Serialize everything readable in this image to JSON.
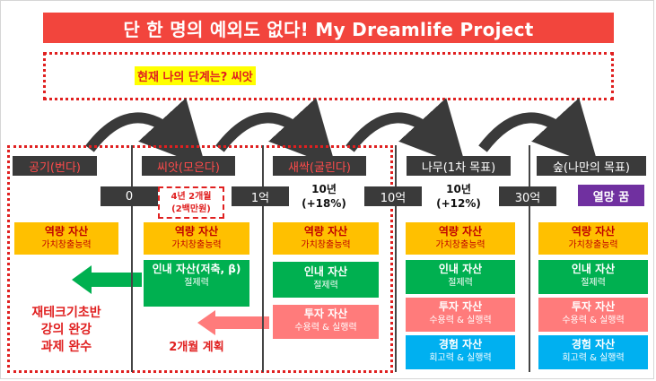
{
  "title": "단 한 명의 예외도 없다! My Dreamlife Project",
  "current_stage": "현재 나의 단계는? 씨앗",
  "phases": [
    {
      "label": "공기(번다)"
    },
    {
      "label": "씨앗(모은다)"
    },
    {
      "label": "새싹(굴린다)"
    },
    {
      "label": "나무(1차 목표)"
    },
    {
      "label": "숲(나만의 목표)"
    }
  ],
  "amounts": [
    "0",
    "1억",
    "10억",
    "30억",
    "열망 꿈"
  ],
  "durations": {
    "seed": {
      "line1": "4년 2개월",
      "line2": "(2백만원)"
    },
    "sprout": {
      "line1": "10년",
      "line2": "(+18%)"
    },
    "tree": {
      "line1": "10년",
      "line2": "(+12%)"
    }
  },
  "assets": {
    "capability": {
      "title": "역량 자산",
      "sub": "가치창출능력"
    },
    "patience_seed": {
      "title": "인내 자산(저축, β)",
      "sub": "절제력"
    },
    "patience": {
      "title": "인내 자산",
      "sub": "절제력"
    },
    "investment": {
      "title": "투자 자산",
      "sub": "수용력 & 실행력"
    },
    "experience": {
      "title": "경험 자산",
      "sub": "회고력 & 실행력"
    }
  },
  "notes": {
    "air": {
      "line1": "재테크기초반",
      "line2": "강의 완강",
      "line3": "과제 완수"
    },
    "seed_plan": "2개월 계획"
  },
  "colors": {
    "title_bg": "#f2453d",
    "accent_red": "#e02020",
    "yellow": "#ffc000",
    "green": "#00b050",
    "pink": "#ff7b7b",
    "blue": "#00b0f0",
    "purple": "#7030a0",
    "dark": "#3a3a3a"
  }
}
